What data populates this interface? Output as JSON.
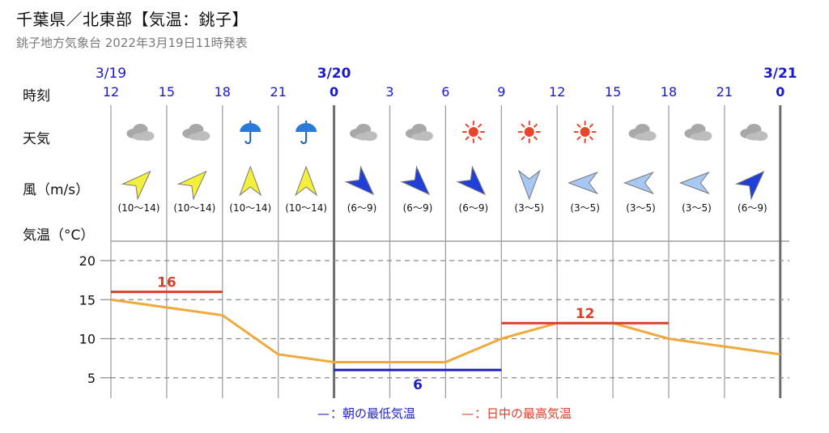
{
  "header": {
    "title": "千葉県／北東部【気温：銚子】",
    "subtitle": "銚子地方気象台 2022年3月19日11時発表"
  },
  "row_labels": {
    "time": "時刻",
    "weather": "天気",
    "wind": "風（m/s）",
    "temp": "気温（°C）"
  },
  "dates": [
    "3/19",
    "3/20",
    "3/21"
  ],
  "hours": [
    "12",
    "15",
    "18",
    "21",
    "0",
    "3",
    "6",
    "9",
    "12",
    "15",
    "18",
    "21",
    "0"
  ],
  "weather": [
    "cloudy",
    "cloudy",
    "rain",
    "rain",
    "cloudy",
    "cloudy",
    "sunny",
    "sunny",
    "sunny",
    "cloudy",
    "cloudy",
    "cloudy"
  ],
  "wind": [
    {
      "dir": "SW",
      "level": "strong",
      "range": "(10～14)"
    },
    {
      "dir": "SW",
      "level": "strong",
      "range": "(10～14)"
    },
    {
      "dir": "S",
      "level": "strong",
      "range": "(10～14)"
    },
    {
      "dir": "S",
      "level": "strong",
      "range": "(10～14)"
    },
    {
      "dir": "NW",
      "level": "medium",
      "range": "(6～9)"
    },
    {
      "dir": "NW",
      "level": "medium",
      "range": "(6～9)"
    },
    {
      "dir": "NW",
      "level": "medium",
      "range": "(6～9)"
    },
    {
      "dir": "N",
      "level": "light",
      "range": "(3～5)"
    },
    {
      "dir": "E",
      "level": "light",
      "range": "(3～5)"
    },
    {
      "dir": "E",
      "level": "light",
      "range": "(3～5)"
    },
    {
      "dir": "E",
      "level": "light",
      "range": "(3～5)"
    },
    {
      "dir": "SW",
      "level": "medium",
      "range": "(6～9)"
    }
  ],
  "colors": {
    "date": "#1a1acc",
    "temp_line": "#f0a93c",
    "max": "#d9402b",
    "min": "#1f1fbf",
    "grid": "#8e8e8e",
    "strong_wind": "#f4ef3a",
    "medium_wind": "#1f3fd6",
    "light_wind": "#a6c8f2",
    "sun": "#e8452d",
    "umbrella": "#2a7ad8",
    "cloud": "#a8a8a8"
  },
  "chart_data": {
    "type": "line",
    "x": [
      "3/19 12",
      "3/19 15",
      "3/19 18",
      "3/19 21",
      "3/20 0",
      "3/20 3",
      "3/20 6",
      "3/20 9",
      "3/20 12",
      "3/20 15",
      "3/20 18",
      "3/20 21",
      "3/21 0"
    ],
    "series": [
      {
        "values": [
          15,
          14,
          13,
          8,
          7,
          7,
          7,
          10,
          12,
          12,
          10,
          9,
          8
        ]
      }
    ],
    "ylim": [
      2,
      23
    ],
    "yticks": [
      5,
      10,
      15,
      20
    ],
    "grid": true,
    "max_bars": [
      {
        "from": 0,
        "to": 2,
        "value": 16,
        "label": "16"
      },
      {
        "from": 7,
        "to": 10,
        "value": 12,
        "label": "12"
      }
    ],
    "min_bars": [
      {
        "from": 4,
        "to": 7,
        "value": 6,
        "label": "6"
      }
    ],
    "legend": [
      {
        "symbol": "—",
        "text": "：朝の最低気温",
        "color": "#1f1fbf"
      },
      {
        "symbol": "—",
        "text": "：日中の最高気温",
        "color": "#d9402b"
      }
    ],
    "legend_position": "bottom-center"
  }
}
